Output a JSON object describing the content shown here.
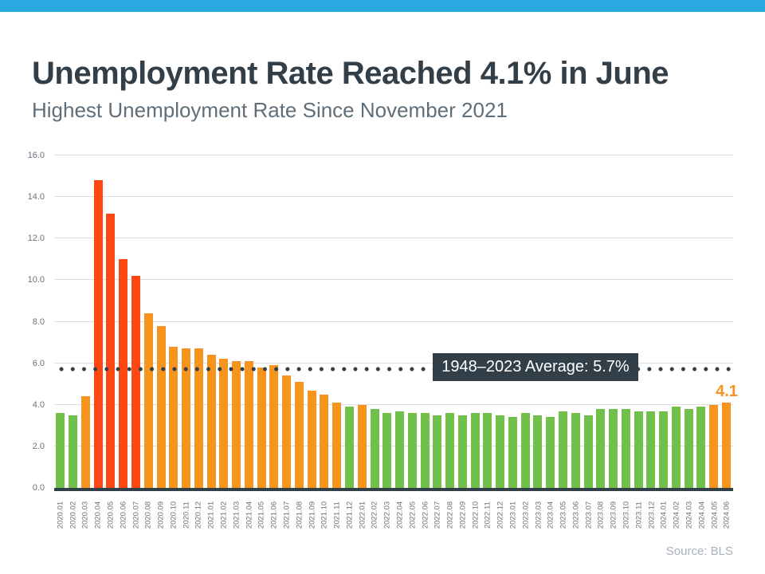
{
  "header": {
    "title": "Unemployment Rate Reached 4.1% in June",
    "subtitle": "Highest Unemployment Rate Since November 2021"
  },
  "footer": {
    "source": "Source: BLS"
  },
  "colors": {
    "banner": "#29ABE2",
    "navy": "#333F48",
    "subtitle": "#5F6E78",
    "grid": "#DBDDDF",
    "axis_text": "#68747E",
    "source": "#A9B2BA"
  },
  "chart_data": {
    "type": "bar",
    "title": "Unemployment Rate Reached 4.1% in June",
    "subtitle": "Highest Unemployment Rate Since November 2021",
    "xlabel": "",
    "ylabel": "",
    "ylim": [
      0,
      16
    ],
    "ytick_step": 2,
    "ytick_labels": [
      "0.0",
      "2.0",
      "4.0",
      "6.0",
      "8.0",
      "10.0",
      "12.0",
      "14.0",
      "16.0"
    ],
    "grid": true,
    "legend": null,
    "categories": [
      "2020.01",
      "2020.02",
      "2020.03",
      "2020.04",
      "2020.05",
      "2020.06",
      "2020.07",
      "2020.08",
      "2020.09",
      "2020.10",
      "2020.11",
      "2020.12",
      "2021.01",
      "2021.02",
      "2021.03",
      "2021.04",
      "2021.05",
      "2021.06",
      "2021.07",
      "2021.08",
      "2021.09",
      "2021.10",
      "2021.11",
      "2021.12",
      "2022.01",
      "2022.02",
      "2022.03",
      "2022.04",
      "2022.05",
      "2022.06",
      "2022.07",
      "2022.08",
      "2022.09",
      "2022.10",
      "2022.11",
      "2022.12",
      "2023.01",
      "2023.02",
      "2023.03",
      "2023.04",
      "2023.05",
      "2023.06",
      "2023.07",
      "2023.08",
      "2023.09",
      "2023.10",
      "2023.11",
      "2023.12",
      "2024.01",
      "2024.02",
      "2024.03",
      "2024.04",
      "2024.05",
      "2024.06"
    ],
    "values": [
      3.6,
      3.5,
      4.4,
      14.8,
      13.2,
      11.0,
      10.2,
      8.4,
      7.8,
      6.8,
      6.7,
      6.7,
      6.4,
      6.2,
      6.1,
      6.1,
      5.8,
      5.9,
      5.4,
      5.1,
      4.7,
      4.5,
      4.1,
      3.9,
      4.0,
      3.8,
      3.6,
      3.7,
      3.6,
      3.6,
      3.5,
      3.6,
      3.5,
      3.6,
      3.6,
      3.5,
      3.4,
      3.6,
      3.5,
      3.4,
      3.7,
      3.6,
      3.5,
      3.8,
      3.8,
      3.8,
      3.7,
      3.7,
      3.7,
      3.9,
      3.8,
      3.9,
      4.0,
      4.1
    ],
    "colors": {
      "low": "#72C04C",
      "mid": "#F7941E",
      "high": "#FF4713"
    },
    "color_rules": {
      "mid_min": 4.0,
      "high_min": 10.0
    },
    "average_line": {
      "value": 5.7,
      "label": "1948–2023 Average: 5.7%"
    },
    "last_value_label": "4.1"
  }
}
